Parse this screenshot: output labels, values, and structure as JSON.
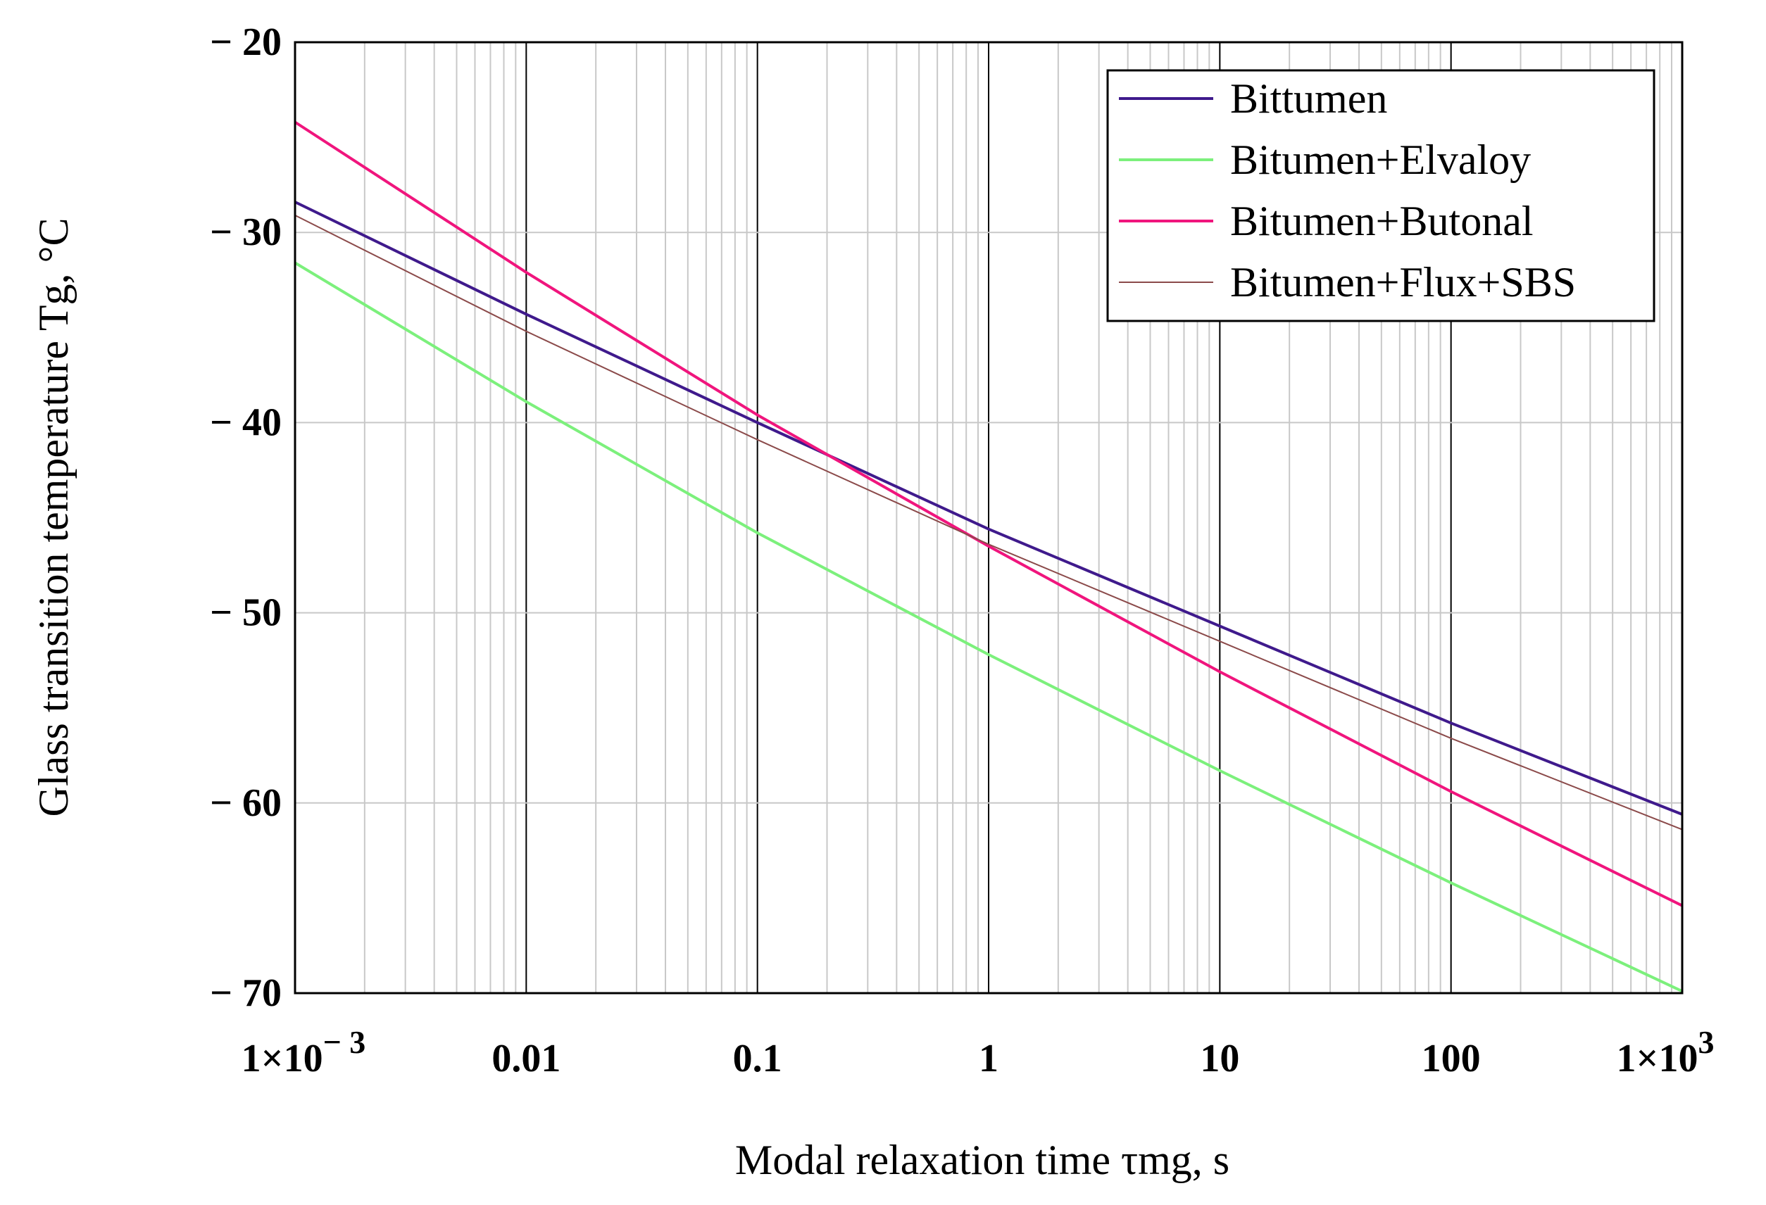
{
  "chart_data": {
    "type": "line",
    "x_scale": "log",
    "xlabel": "Modal relaxation time τmg, s",
    "ylabel": "Glass transition temperature Tg, °C",
    "xlim": [
      0.001,
      1000
    ],
    "ylim": [
      -70,
      -20
    ],
    "y_ticks": [
      {
        "value": -20,
        "label": "− 20"
      },
      {
        "value": -30,
        "label": "− 30"
      },
      {
        "value": -40,
        "label": "− 40"
      },
      {
        "value": -50,
        "label": "− 50"
      },
      {
        "value": -60,
        "label": "− 60"
      },
      {
        "value": -70,
        "label": "− 70"
      }
    ],
    "x_ticks": [
      {
        "value": 0.001,
        "label": "1×10",
        "sup": "− 3"
      },
      {
        "value": 0.01,
        "label": "0.01",
        "sup": ""
      },
      {
        "value": 0.1,
        "label": "0.1",
        "sup": ""
      },
      {
        "value": 1,
        "label": "1",
        "sup": ""
      },
      {
        "value": 10,
        "label": "10",
        "sup": ""
      },
      {
        "value": 100,
        "label": "100",
        "sup": ""
      },
      {
        "value": 1000,
        "label": "1×10",
        "sup": "3"
      }
    ],
    "grid": true,
    "legend_position": "top-right",
    "series": [
      {
        "name": "Bittumen",
        "color": "#3f1a8c",
        "x": [
          0.001,
          0.01,
          0.1,
          1,
          10,
          100,
          1000
        ],
        "y": [
          -28.4,
          -34.3,
          -40.0,
          -45.6,
          -50.7,
          -55.8,
          -60.6
        ]
      },
      {
        "name": "Bitumen+Elvaloy",
        "color": "#7cf07c",
        "x": [
          0.001,
          0.01,
          0.1,
          1,
          10,
          100,
          1000
        ],
        "y": [
          -31.6,
          -38.9,
          -45.8,
          -52.2,
          -58.3,
          -64.2,
          -69.9
        ]
      },
      {
        "name": "Bitumen+Butonal",
        "color": "#f0157d",
        "x": [
          0.001,
          0.01,
          0.1,
          1,
          10,
          100,
          1000
        ],
        "y": [
          -24.2,
          -32.1,
          -39.6,
          -46.5,
          -53.1,
          -59.4,
          -65.4
        ]
      },
      {
        "name": "Bitumen+Flux+SBS",
        "color": "#8b4a4a",
        "x": [
          0.001,
          0.01,
          0.1,
          1,
          10,
          100,
          1000
        ],
        "y": [
          -29.1,
          -35.2,
          -40.9,
          -46.4,
          -51.5,
          -56.6,
          -61.4
        ]
      }
    ]
  }
}
